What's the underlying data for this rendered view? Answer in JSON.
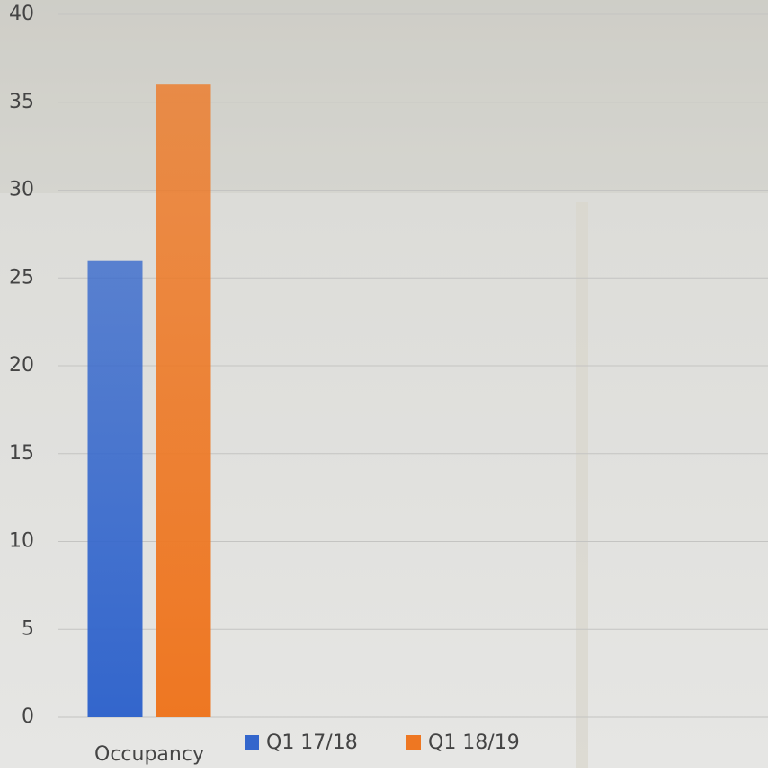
{
  "chart_data": {
    "type": "bar",
    "categories": [
      "Occupancy"
    ],
    "series": [
      {
        "name": "Q1 17/18",
        "color": "#3366cc",
        "values": [
          26
        ]
      },
      {
        "name": "Q1 18/19",
        "color": "#ee7722",
        "values": [
          36
        ]
      }
    ],
    "ylim": [
      0,
      40
    ],
    "yticks": [
      0,
      5,
      10,
      15,
      20,
      25,
      30,
      35,
      40
    ],
    "grid": true,
    "legend": "bottom"
  }
}
